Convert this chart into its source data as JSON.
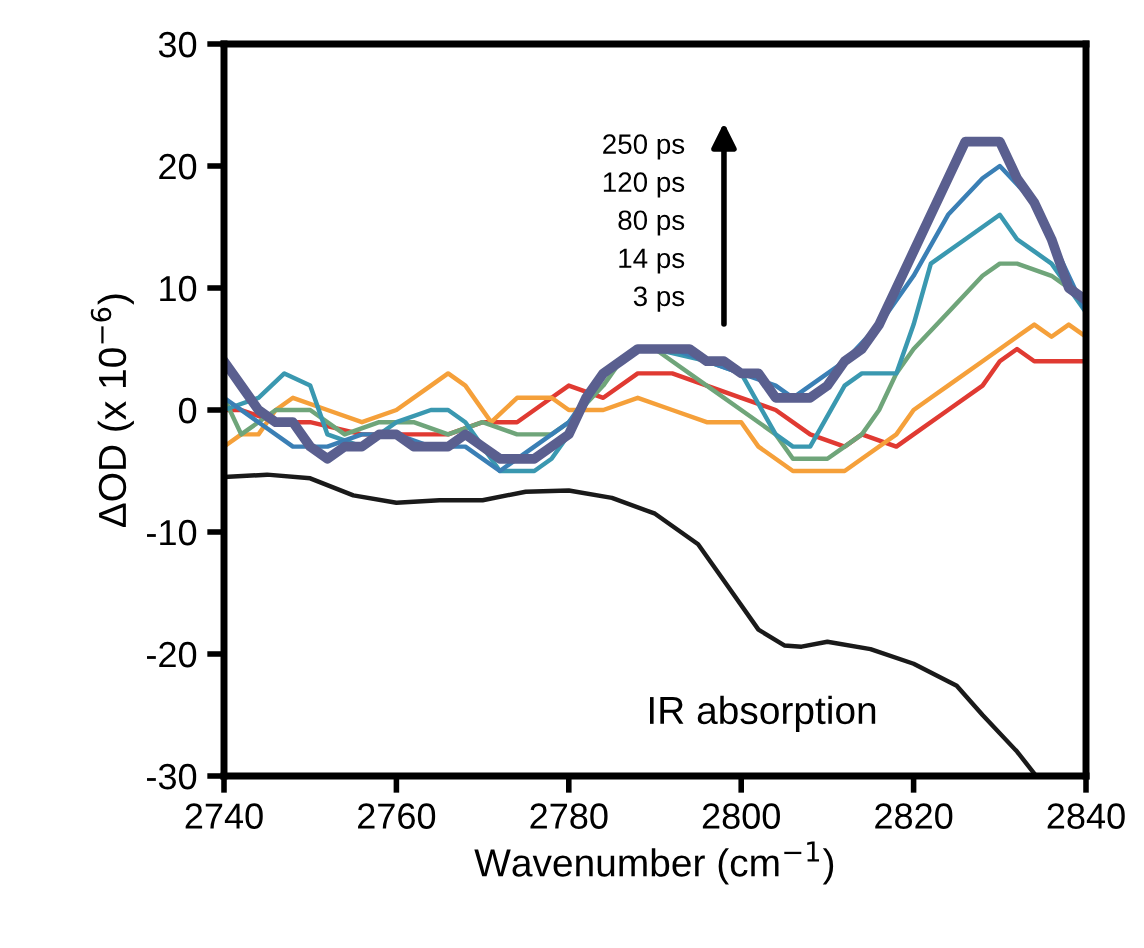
{
  "chart_data": {
    "type": "line",
    "xlabel": "Wavenumber (cm$^{−1}$)",
    "ylabel": "ΔOD (x 10$^{−6}$)",
    "xlim": [
      2740,
      2840
    ],
    "xticks": [
      2740,
      2760,
      2780,
      2800,
      2820,
      2840
    ],
    "ylim": [
      -30,
      30
    ],
    "yticks": [
      -30,
      -20,
      -10,
      0,
      10,
      20,
      30
    ],
    "grid": false,
    "legend": false,
    "marker": "none",
    "line_style": "solid",
    "series": [
      {
        "color": "#e03a32",
        "x": [
          2740,
          2742,
          2746,
          2750,
          2756,
          2762,
          2766,
          2770,
          2774,
          2778,
          2780,
          2784,
          2788,
          2792,
          2796,
          2800,
          2804,
          2808,
          2812,
          2814,
          2818,
          2820,
          2824,
          2828,
          2830,
          2832,
          2834,
          2836,
          2840
        ],
        "values": [
          0,
          0,
          -1,
          -1,
          -2,
          -2,
          -2,
          -1,
          -1,
          1,
          2,
          1,
          3,
          3,
          2,
          1,
          0,
          -2,
          -3,
          -2,
          -3,
          -2,
          0,
          2,
          4,
          5,
          4,
          4,
          4
        ]
      },
      {
        "color": "#f5a03a",
        "x": [
          2740,
          2742,
          2744,
          2746,
          2748,
          2752,
          2756,
          2760,
          2764,
          2766,
          2768,
          2771,
          2774,
          2778,
          2780,
          2784,
          2788,
          2792,
          2796,
          2800,
          2802,
          2806,
          2812,
          2814,
          2818,
          2820,
          2822,
          2824,
          2828,
          2830,
          2832,
          2834,
          2836,
          2838,
          2840
        ],
        "values": [
          -3,
          -2,
          -2,
          0,
          1,
          0,
          -1,
          0,
          2,
          3,
          2,
          -1,
          1,
          1,
          0,
          0,
          1,
          0,
          -1,
          -1,
          -3,
          -5,
          -5,
          -4,
          -2,
          0,
          1,
          2,
          4,
          5,
          6,
          7,
          6,
          7,
          6
        ]
      },
      {
        "color": "#6fa57a",
        "x": [
          2740,
          2742,
          2744,
          2746,
          2750,
          2754,
          2758,
          2762,
          2766,
          2770,
          2774,
          2778,
          2780,
          2784,
          2786,
          2788,
          2790,
          2792,
          2796,
          2800,
          2804,
          2806,
          2810,
          2812,
          2814,
          2816,
          2818,
          2820,
          2824,
          2828,
          2830,
          2832,
          2836,
          2840
        ],
        "values": [
          1,
          -2,
          -1,
          0,
          0,
          -2,
          -1,
          -1,
          -2,
          -1,
          -2,
          -2,
          -1,
          2,
          4,
          5,
          5,
          4,
          2,
          0,
          -2,
          -4,
          -4,
          -3,
          -2,
          0,
          3,
          5,
          8,
          11,
          12,
          12,
          11,
          9
        ]
      },
      {
        "color": "#3a98b0",
        "x": [
          2740,
          2744,
          2747,
          2750,
          2752,
          2756,
          2760,
          2764,
          2766,
          2768,
          2770,
          2772,
          2776,
          2778,
          2780,
          2784,
          2788,
          2790,
          2796,
          2800,
          2804,
          2806,
          2808,
          2812,
          2814,
          2818,
          2820,
          2822,
          2826,
          2828,
          2830,
          2832,
          2834,
          2836,
          2840
        ],
        "values": [
          0,
          1,
          3,
          2,
          -2,
          -3,
          -1,
          0,
          0,
          -1,
          -3,
          -5,
          -5,
          -4,
          -2,
          3,
          5,
          5,
          4,
          3,
          -2,
          -3,
          -3,
          2,
          3,
          3,
          7,
          12,
          14,
          15,
          16,
          14,
          13,
          12,
          8
        ]
      },
      {
        "color": "#3a7fb5",
        "x": [
          2740,
          2744,
          2748,
          2752,
          2756,
          2760,
          2764,
          2768,
          2772,
          2776,
          2780,
          2784,
          2788,
          2792,
          2796,
          2800,
          2804,
          2806,
          2808,
          2812,
          2816,
          2820,
          2824,
          2828,
          2830,
          2834,
          2836,
          2840
        ],
        "values": [
          1,
          -1,
          -3,
          -3,
          -2,
          -2,
          -3,
          -3,
          -5,
          -3,
          -1,
          3,
          5,
          5,
          4,
          3,
          2,
          1,
          2,
          4,
          7,
          11,
          16,
          19,
          20,
          17,
          14,
          8
        ]
      },
      {
        "color": "#5a5f8f",
        "x": [
          2740,
          2742,
          2744,
          2746,
          2748,
          2750,
          2752,
          2754,
          2756,
          2758,
          2760,
          2762,
          2764,
          2766,
          2768,
          2770,
          2772,
          2774,
          2776,
          2778,
          2780,
          2782,
          2784,
          2786,
          2788,
          2790,
          2792,
          2794,
          2796,
          2798,
          2800,
          2802,
          2804,
          2806,
          2808,
          2810,
          2812,
          2814,
          2816,
          2818,
          2820,
          2822,
          2824,
          2826,
          2828,
          2830,
          2832,
          2834,
          2836,
          2838,
          2840
        ],
        "values": [
          4,
          2,
          0,
          -1,
          -1,
          -3,
          -4,
          -3,
          -3,
          -2,
          -2,
          -3,
          -3,
          -3,
          -2,
          -3,
          -4,
          -4,
          -4,
          -3,
          -2,
          1,
          3,
          4,
          5,
          5,
          5,
          5,
          4,
          4,
          3,
          3,
          1,
          1,
          1,
          2,
          4,
          5,
          7,
          10,
          13,
          16,
          19,
          22,
          22,
          22,
          19,
          17,
          14,
          10,
          9
        ]
      },
      {
        "color": "#1a1a1a",
        "x": [
          2740,
          2745,
          2750,
          2755,
          2760,
          2765,
          2770,
          2775,
          2780,
          2785,
          2790,
          2795,
          2798,
          2802,
          2805,
          2807,
          2810,
          2815,
          2820,
          2825,
          2828,
          2832,
          2834
        ],
        "values": [
          -5.5,
          -5.3,
          -5.6,
          -7,
          -7.6,
          -7.4,
          -7.4,
          -6.7,
          -6.6,
          -7.2,
          -8.5,
          -11,
          -14,
          -18,
          -19.3,
          -19.4,
          -19,
          -19.6,
          -20.8,
          -22.6,
          -25,
          -28,
          -29.8
        ]
      }
    ],
    "annotations": [
      "250 ps",
      "120 ps",
      "80 ps",
      "14 ps",
      "3 ps",
      "IR absorption"
    ]
  }
}
